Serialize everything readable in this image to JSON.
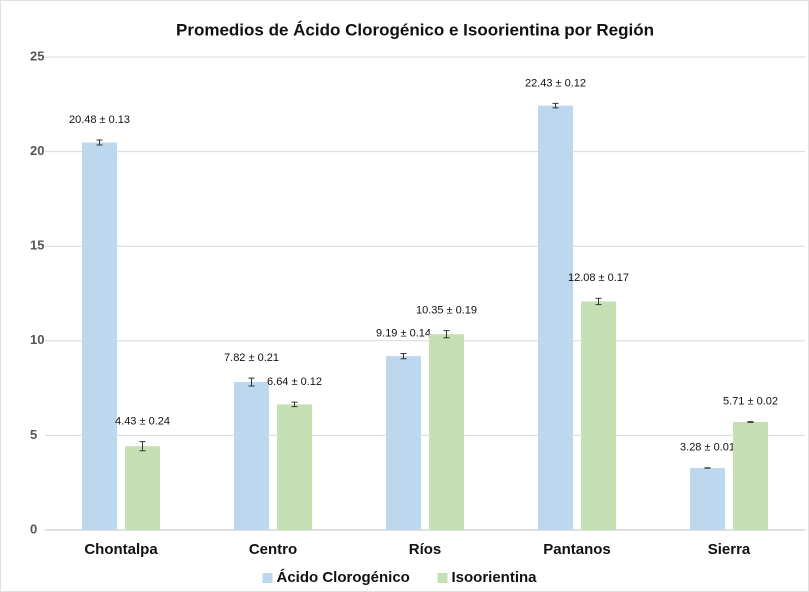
{
  "chart_data": {
    "type": "bar",
    "title": "Promedios de Ácido Clorogénico e Isoorientina por Región",
    "categories": [
      "Chontalpa",
      "Centro",
      "Ríos",
      "Pantanos",
      "Sierra"
    ],
    "series": [
      {
        "name": "Ácido Clorogénico",
        "color": "#bdd7ee",
        "values": [
          20.48,
          7.82,
          9.19,
          22.43,
          3.28
        ],
        "errors": [
          0.13,
          0.21,
          0.14,
          0.12,
          0.01
        ],
        "value_labels": [
          "20.48 ± 0.13",
          "7.82 ± 0.21",
          "9.19 ± 0.14",
          "22.43 ± 0.12",
          "3.28 ± 0.01"
        ]
      },
      {
        "name": "Isoorientina",
        "color": "#c5e0b4",
        "values": [
          4.43,
          6.64,
          10.35,
          12.08,
          5.71
        ],
        "errors": [
          0.24,
          0.12,
          0.19,
          0.17,
          0.02
        ],
        "value_labels": [
          "4.43 ± 0.24",
          "6.64 ± 0.12",
          "10.35 ± 0.19",
          "12.08 ± 0.17",
          "5.71 ± 0.02"
        ]
      }
    ],
    "ylim": [
      0,
      25
    ],
    "yticks": [
      0,
      5,
      10,
      15,
      20,
      25
    ],
    "grid": true,
    "legend": "bottom"
  }
}
